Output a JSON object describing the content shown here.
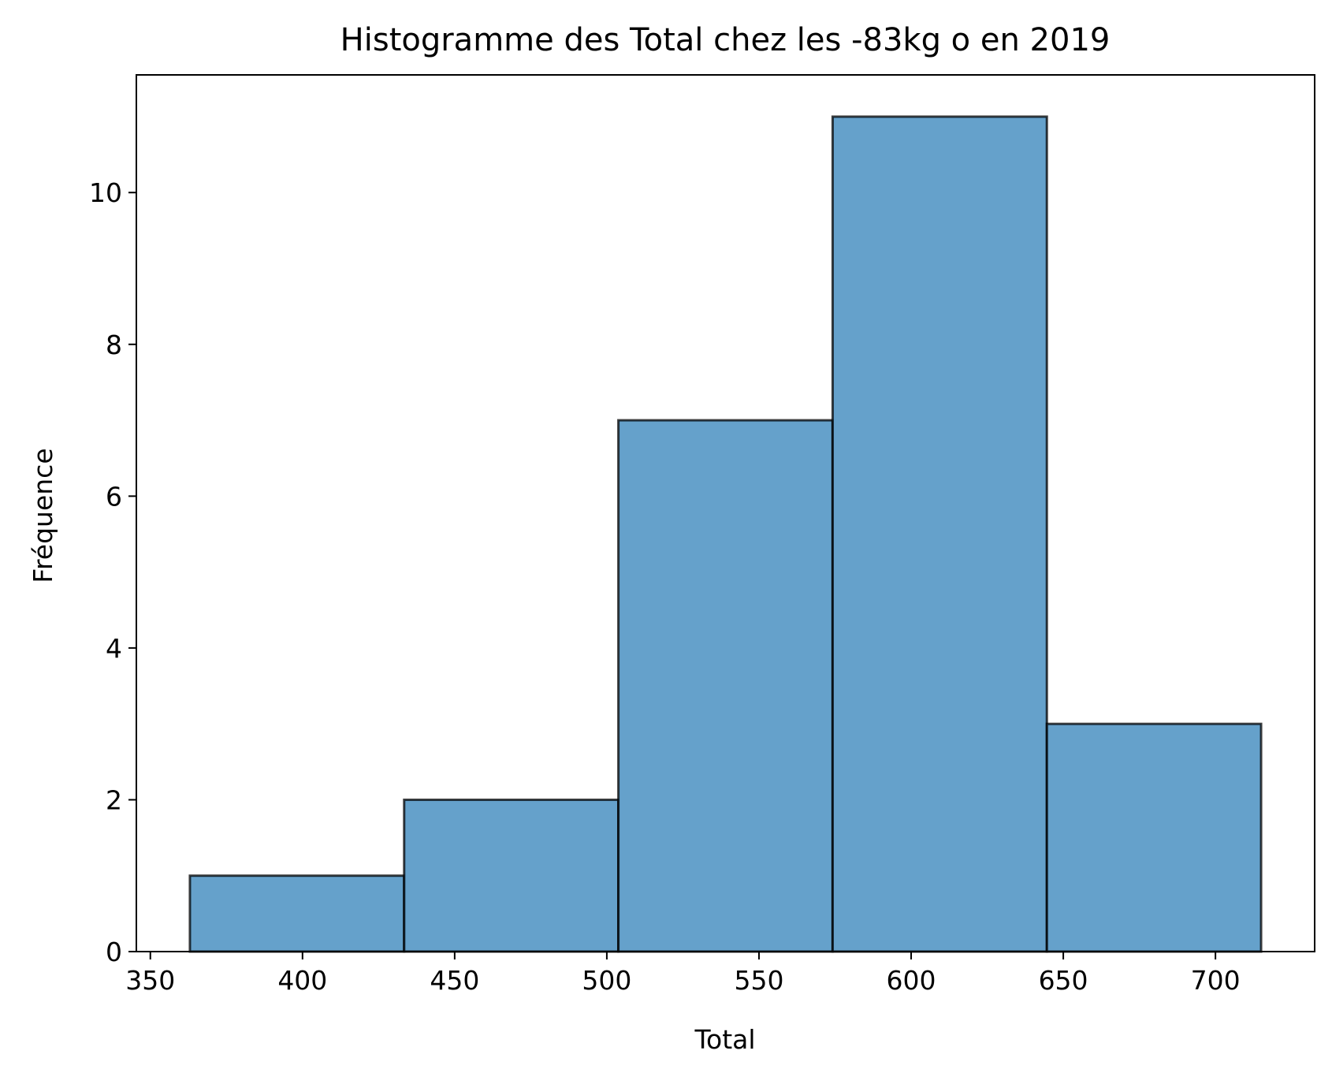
{
  "chart_data": {
    "type": "bar",
    "title": "Histogramme des Total chez les -83kg o en 2019",
    "xlabel": "Total",
    "ylabel": "Fréquence",
    "bins": [
      {
        "start": 363,
        "end": 433.4,
        "count": 1
      },
      {
        "start": 433.4,
        "end": 503.8,
        "count": 2
      },
      {
        "start": 503.8,
        "end": 574.2,
        "count": 7
      },
      {
        "start": 574.2,
        "end": 644.6,
        "count": 11
      },
      {
        "start": 644.6,
        "end": 715,
        "count": 3
      }
    ],
    "xlim": [
      345.4,
      732.6
    ],
    "ylim": [
      0,
      11.55
    ],
    "xticks": [
      350,
      400,
      450,
      500,
      550,
      600,
      650,
      700
    ],
    "yticks": [
      0,
      2,
      4,
      6,
      8,
      10
    ],
    "grid": false,
    "bar_color": "#4a90c2",
    "bar_opacity": 0.85,
    "edge_color": "#000000"
  }
}
